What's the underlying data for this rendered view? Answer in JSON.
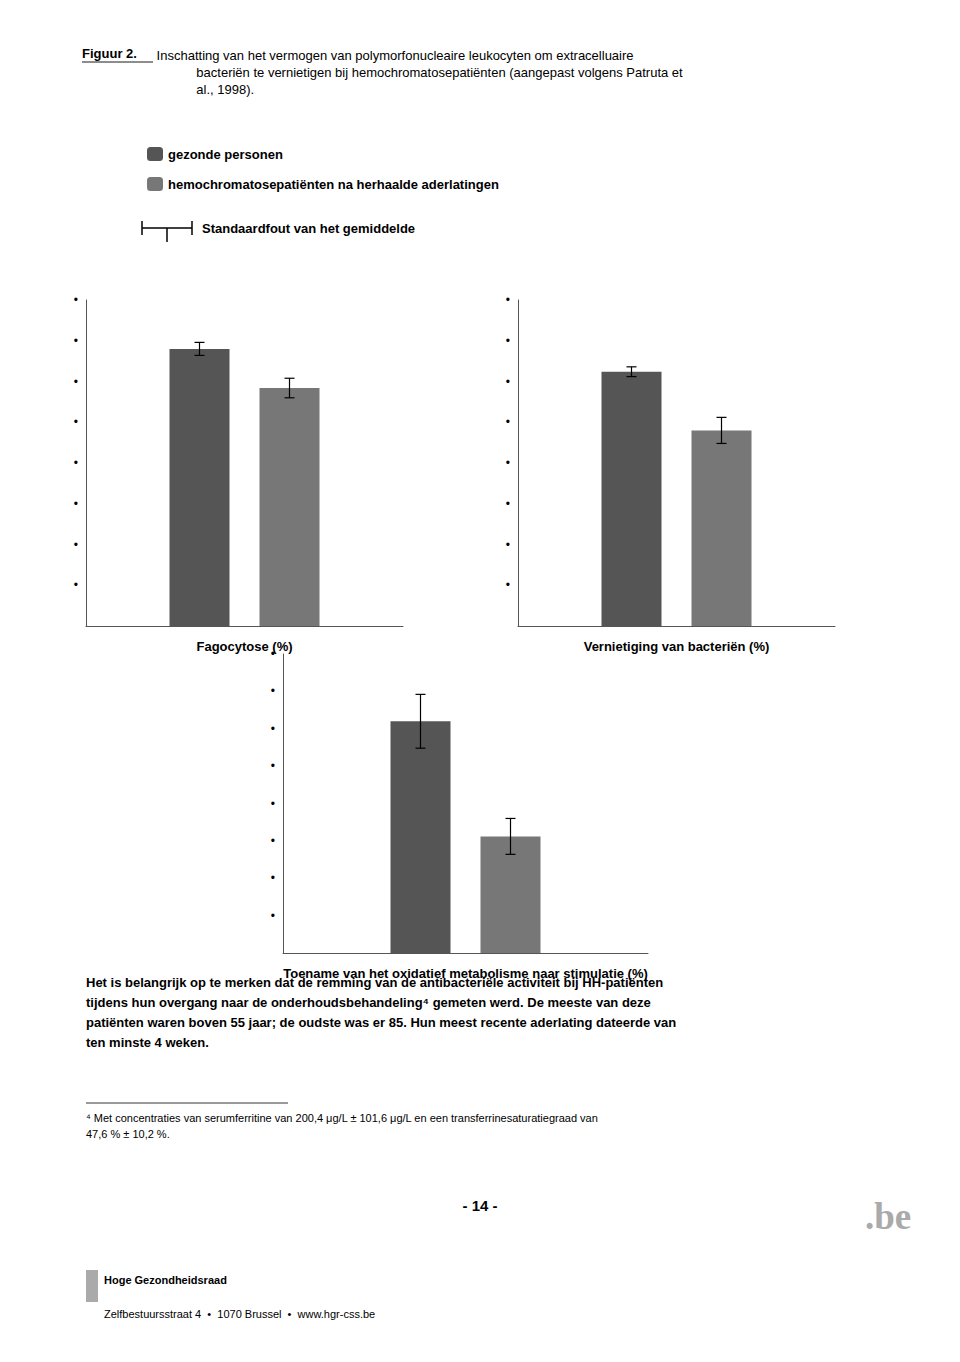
{
  "chart_data": [
    {
      "type": "bar",
      "title": "Figuur 2.",
      "subtitle": " Inschatting van het vermogen van polymorfonucleaire leukocyten om extracelluaire\n            bacteriën te vernietigen bij hemochromatosepatiënten (aangepast volgens Patruta et\n            al., 1998).",
      "xlabel": "Fagocytose (%)",
      "categories": [
        null
      ],
      "series": [
        {
          "name": "gezonde personen",
          "color": "#555555",
          "values": [
            85
          ],
          "errors": [
            2
          ]
        },
        {
          "name": "hemochromatosepatiënten na herhaalde aderlatingen",
          "color": "#777777",
          "values": [
            73
          ],
          "errors": [
            3
          ]
        }
      ],
      "ylim": [
        0,
        100
      ],
      "yticks": [
        {
          "value": 12.5,
          "label": "•"
        },
        {
          "value": 25,
          "label": "•"
        },
        {
          "value": 37.5,
          "label": "•"
        },
        {
          "value": 50,
          "label": "•"
        },
        {
          "value": 62.5,
          "label": "•"
        },
        {
          "value": 75,
          "label": "•"
        },
        {
          "value": 87.5,
          "label": "•"
        },
        {
          "value": 100,
          "label": "•"
        }
      ],
      "grid": false,
      "legend": "upper left",
      "tick_labels": "y",
      "annotations": [
        "Standaardfout van het gemiddelde",
        "Het is belangrijk op te merken dat de remming van de antibacteriële activiteit bij HH-patiënten\ntijdens hun overgang naar de onderhoudsbehandeling⁴ gemeten werd. De meeste van deze\npatiënten waren boven 55 jaar; de oudste was er 85. Hun meest recente aderlating dateerde van\nten minste 4 weken.",
        "⁴ Met concentraties van serumferritine van 200,4 μg/L ± 101,6 μg/L en een transferrinesaturatiegraad van\n47,6 % ± 10,2 %.",
        "- 14 -",
        ".be",
        "Hoge Gezondheidsraad",
        "Zelfbestuursstraat 4  •  1070 Brussel  •  www.hgr-css.be"
      ]
    },
    {
      "type": "bar",
      "xlabel": "Vernietiging van bacteriën (%)",
      "categories": [
        null
      ],
      "series": [
        {
          "name": "gezonde personen",
          "color": "#555555",
          "values": [
            78
          ],
          "errors": [
            1.5
          ]
        },
        {
          "name": "hemochromatosepatiënten na herhaalde aderlatingen",
          "color": "#777777",
          "values": [
            60
          ],
          "errors": [
            4
          ]
        }
      ],
      "ylim": [
        0,
        100
      ],
      "yticks": [
        {
          "value": 12.5,
          "label": "•"
        },
        {
          "value": 25,
          "label": "•"
        },
        {
          "value": 37.5,
          "label": "•"
        },
        {
          "value": 50,
          "label": "•"
        },
        {
          "value": 62.5,
          "label": "•"
        },
        {
          "value": 75,
          "label": "•"
        },
        {
          "value": 87.5,
          "label": "•"
        },
        {
          "value": 100,
          "label": "•"
        }
      ],
      "grid": false,
      "tick_labels": "y"
    },
    {
      "type": "bar",
      "xlabel": "Toename van het oxidatief metabolisme naar stimulatie (%)",
      "categories": [
        null
      ],
      "series": [
        {
          "name": "gezonde personen",
          "color": "#555555",
          "values": [
            155
          ],
          "errors": [
            18
          ]
        },
        {
          "name": "hemochromatosepatiënten na herhaalde aderlatingen",
          "color": "#777777",
          "values": [
            78
          ],
          "errors": [
            12
          ]
        }
      ],
      "ylim": [
        0,
        200
      ],
      "yticks": [
        {
          "value": 25,
          "label": "•"
        },
        {
          "value": 50,
          "label": "•"
        },
        {
          "value": 75,
          "label": "•"
        },
        {
          "value": 100,
          "label": "•"
        },
        {
          "value": 125,
          "label": "•"
        },
        {
          "value": 150,
          "label": "•"
        },
        {
          "value": 175,
          "label": "•"
        },
        {
          "value": 200,
          "label": "•"
        }
      ],
      "grid": false,
      "tick_labels": "y"
    }
  ]
}
